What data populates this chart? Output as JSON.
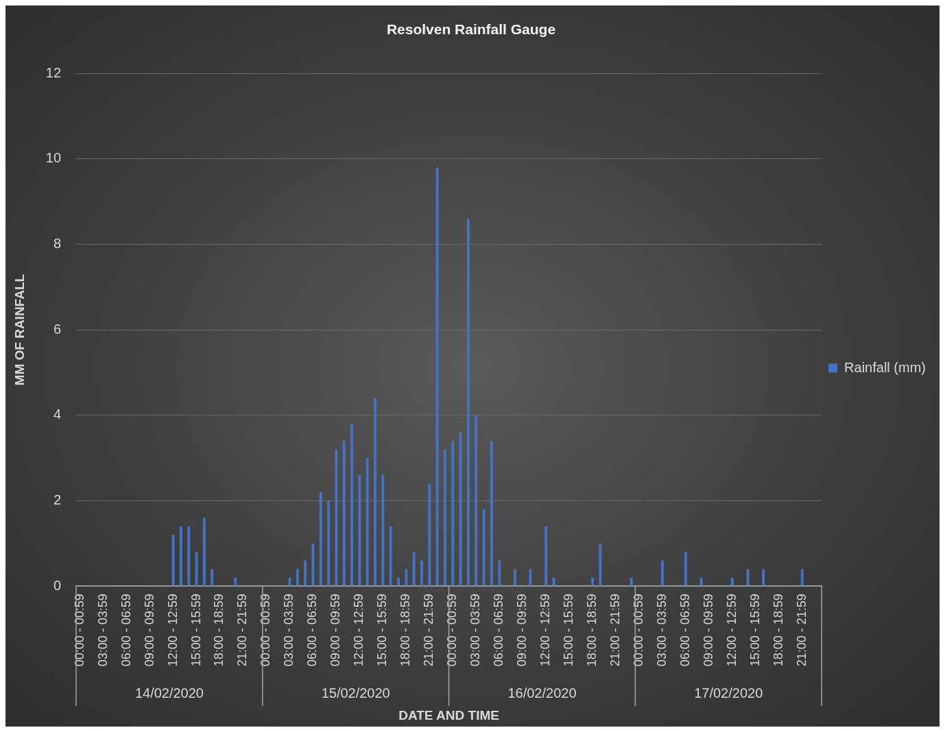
{
  "chart_data": {
    "type": "bar",
    "title": "Resolven Rainfall Gauge",
    "xlabel": "DATE AND TIME",
    "ylabel": "MM OF RAINFALL",
    "categories": [
      "00:00 - 00:59",
      null,
      null,
      "03:00 - 03:59",
      null,
      null,
      "06:00 - 06:59",
      null,
      null,
      "09:00 - 09:59",
      null,
      null,
      "12:00 - 12:59",
      null,
      null,
      "15:00 - 15:59",
      null,
      null,
      "18:00 - 18:59",
      null,
      null,
      "21:00 - 21:59",
      null,
      null,
      "00:00 - 00:59",
      null,
      null,
      "03:00 - 03:59",
      null,
      null,
      "06:00 - 06:59",
      null,
      null,
      "09:00 - 09:59",
      null,
      null,
      "12:00 - 12:59",
      null,
      null,
      "15:00 - 15:59",
      null,
      null,
      "18:00 - 18:59",
      null,
      null,
      "21:00 - 21:59",
      null,
      null,
      "00:00 - 00:59",
      null,
      null,
      "03:00 - 03:59",
      null,
      null,
      "06:00 - 06:59",
      null,
      null,
      "09:00 - 09:59",
      null,
      null,
      "12:00 - 12:59",
      null,
      null,
      "15:00 - 15:59",
      null,
      null,
      "18:00 - 18:59",
      null,
      null,
      "21:00 - 21:59",
      null,
      null,
      "00:00 - 00:59",
      null,
      null,
      "03:00 - 03:59",
      null,
      null,
      "06:00 - 06:59",
      null,
      null,
      "09:00 - 09:59",
      null,
      null,
      "12:00 - 12:59",
      null,
      null,
      "15:00 - 15:59",
      null,
      null,
      "18:00 - 18:59",
      null,
      null,
      "21:00 - 21:59",
      null,
      null
    ],
    "series": [
      {
        "name": "Rainfall (mm)",
        "color": "#4472c4",
        "values": [
          0,
          0,
          0,
          0,
          0,
          0,
          0,
          0,
          0,
          0,
          0,
          0,
          1.2,
          1.4,
          1.4,
          0.8,
          1.6,
          0.4,
          0,
          0,
          0.2,
          0,
          0,
          0,
          0,
          0,
          0,
          0.2,
          0.4,
          0.6,
          1.0,
          2.2,
          2.0,
          3.2,
          3.4,
          3.8,
          2.6,
          3.0,
          4.4,
          2.6,
          1.4,
          0.2,
          0.4,
          0.8,
          0.6,
          2.4,
          9.8,
          3.2,
          3.4,
          3.6,
          8.6,
          4.0,
          1.8,
          3.4,
          0.6,
          0,
          0.4,
          0,
          0.4,
          0,
          1.4,
          0.2,
          0,
          0,
          0,
          0,
          0.2,
          1.0,
          0,
          0,
          0,
          0.2,
          0,
          0,
          0,
          0.6,
          0,
          0,
          0.8,
          0,
          0.2,
          0,
          0,
          0,
          0.2,
          0,
          0.4,
          0,
          0.4,
          0,
          0,
          0,
          0,
          0.4,
          0,
          0
        ]
      }
    ],
    "annotations": [
      "14/02/2020",
      "15/02/2020",
      "16/02/2020",
      "17/02/2020"
    ],
    "ylim": [
      0,
      12
    ],
    "yticks": [
      0,
      2,
      4,
      6,
      8,
      10,
      12
    ],
    "grid": "y",
    "legend": "right"
  }
}
